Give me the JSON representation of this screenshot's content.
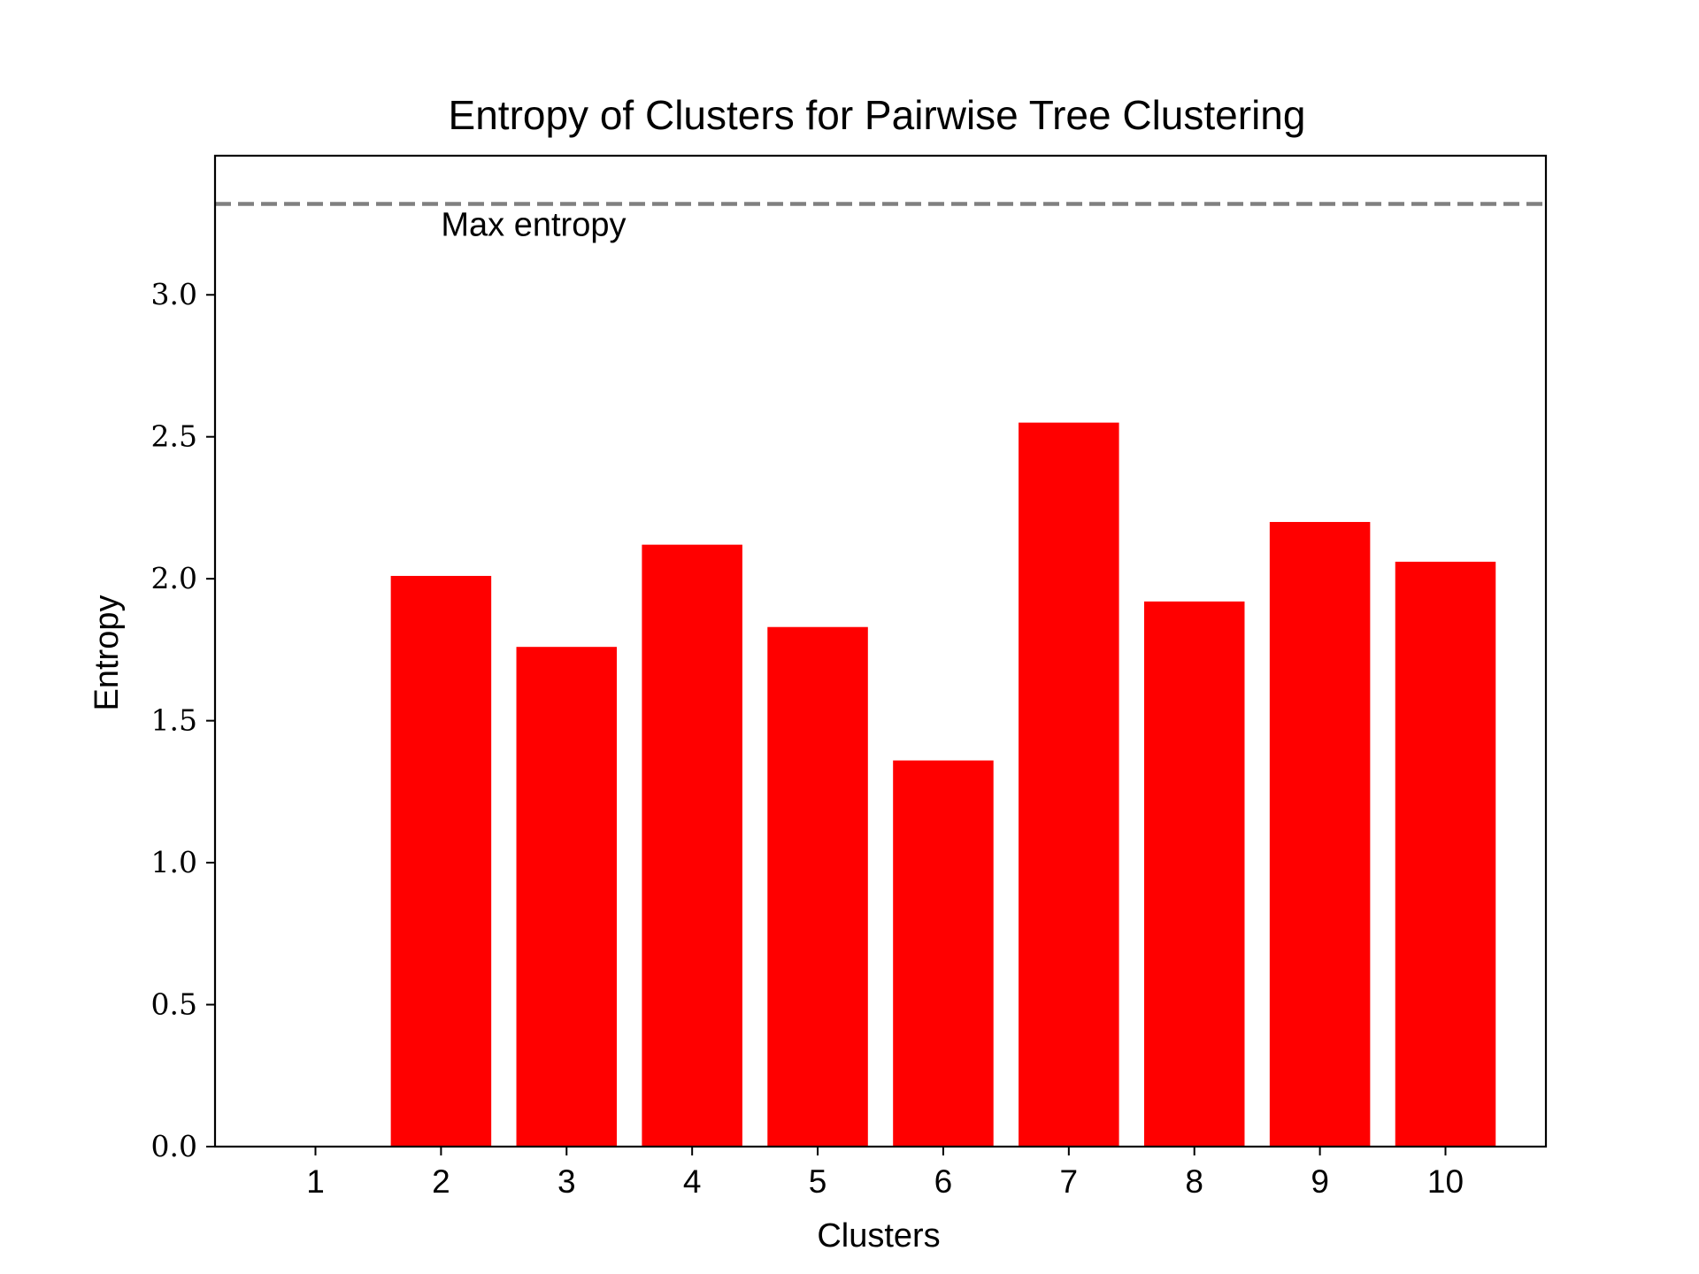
{
  "chart_data": {
    "type": "bar",
    "title": "Entropy of Clusters for Pairwise Tree Clustering",
    "xlabel": "Clusters",
    "ylabel": "Entropy",
    "categories": [
      "1",
      "2",
      "3",
      "4",
      "5",
      "6",
      "7",
      "8",
      "9",
      "10"
    ],
    "values": [
      0.0,
      2.01,
      1.76,
      2.12,
      1.83,
      1.36,
      2.55,
      1.92,
      2.2,
      2.06
    ],
    "bar_color": "#ff0000",
    "yticks": [
      "0.0",
      "0.5",
      "1.0",
      "1.5",
      "2.0",
      "2.5",
      "3.0"
    ],
    "ylim": [
      0,
      3.49
    ],
    "reference_line": {
      "value": 3.32,
      "label": "Max entropy",
      "color": "#808080",
      "style": "dashed"
    },
    "grid": false,
    "legend": "none"
  }
}
